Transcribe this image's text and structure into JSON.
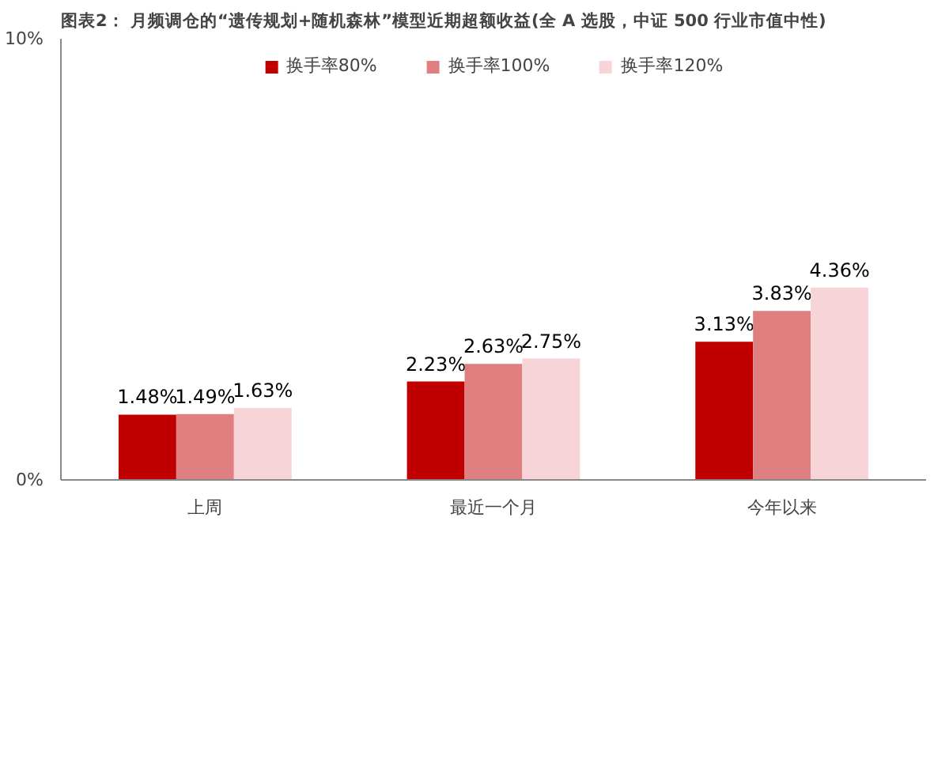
{
  "chart_data": {
    "type": "bar",
    "title": "图表2：  月频调仓的“遗传规划+随机森林”模型近期超额收益(全 A 选股，中证 500 行业市值中性)",
    "categories": [
      "上周",
      "最近一个月",
      "今年以来"
    ],
    "series": [
      {
        "name": "换手率80%",
        "color": "#c00000",
        "values": [
          1.48,
          2.23,
          3.13
        ],
        "value_labels": [
          "1.48%",
          "2.23%",
          "3.13%"
        ]
      },
      {
        "name": "换手率100%",
        "color": "#e07f80",
        "values": [
          1.49,
          2.63,
          3.83
        ],
        "value_labels": [
          "1.49%",
          "2.63%",
          "3.83%"
        ]
      },
      {
        "name": "换手率120%",
        "color": "#f6d4d8",
        "values": [
          1.63,
          2.75,
          4.36
        ],
        "value_labels": [
          "1.63%",
          "2.75%",
          "4.36%"
        ]
      }
    ],
    "ylim": [
      0,
      10
    ],
    "yticks": [
      {
        "value": 0,
        "label": "0%"
      },
      {
        "value": 10,
        "label": "10%"
      }
    ],
    "grid": false,
    "legend": "top"
  }
}
